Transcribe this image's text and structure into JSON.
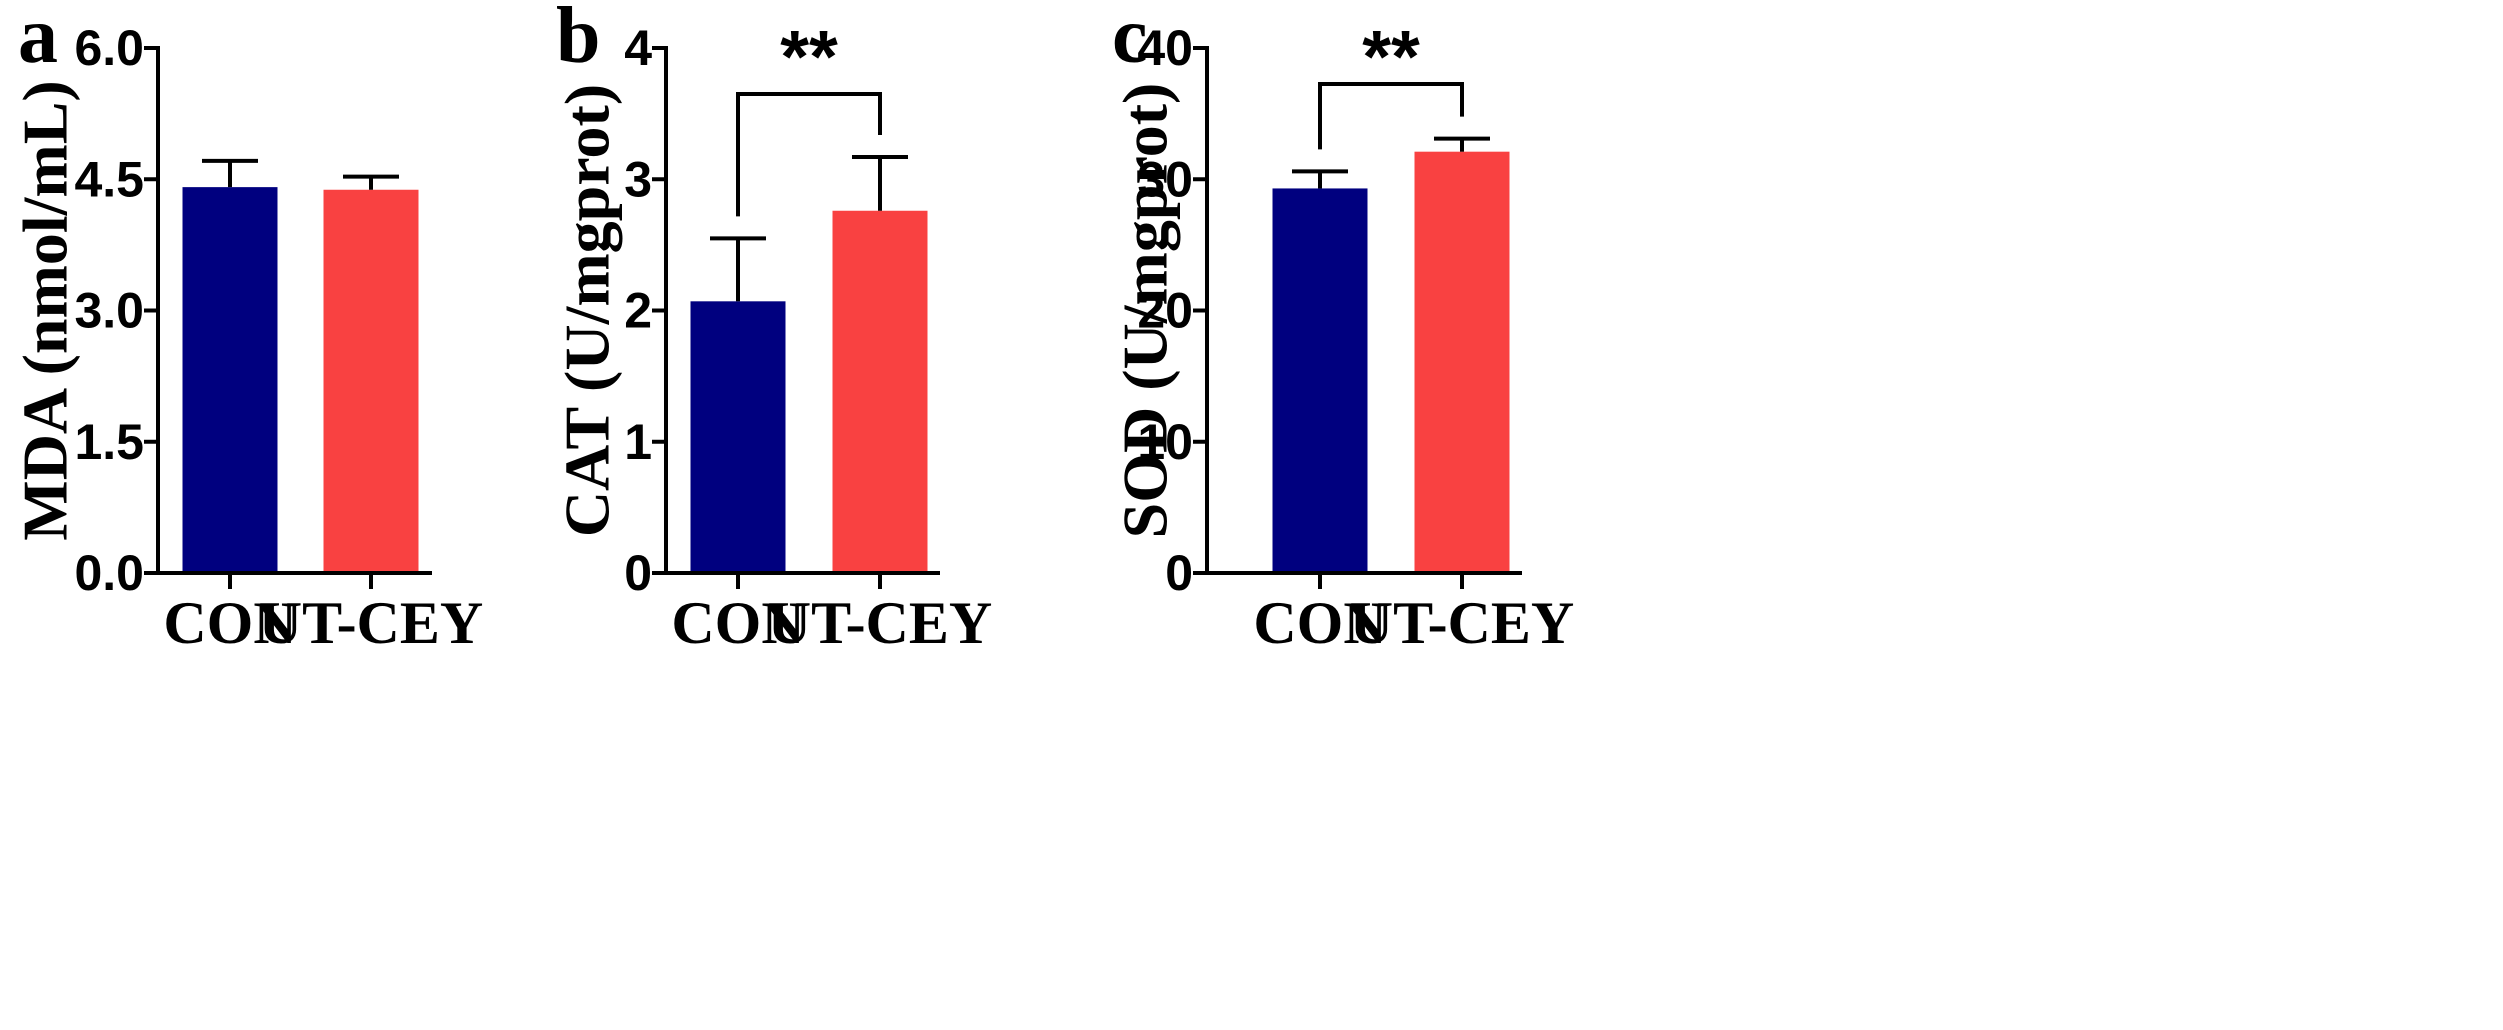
{
  "chart_data": [
    {
      "type": "bar",
      "panel": "a",
      "categories": [
        "CON",
        "UT-CEY"
      ],
      "values": [
        4.41,
        4.38
      ],
      "errors": [
        0.3,
        0.15
      ],
      "colors": [
        "#00007f",
        "#f94141"
      ],
      "ylabel": "MDA (nmol/mL)",
      "ylim": [
        0,
        6
      ],
      "yticks": [
        "0.0",
        "1.5",
        "3.0",
        "4.5",
        "6.0"
      ],
      "significance": null
    },
    {
      "type": "bar",
      "panel": "b",
      "categories": [
        "CON",
        "UT-CEY"
      ],
      "values": [
        2.07,
        2.76
      ],
      "errors": [
        0.48,
        0.41
      ],
      "colors": [
        "#00007f",
        "#f94141"
      ],
      "ylabel": "CAT (U/mgprot)",
      "ylim": [
        0,
        4
      ],
      "yticks": [
        "0",
        "1",
        "2",
        "3",
        "4"
      ],
      "significance": "**"
    },
    {
      "type": "bar",
      "panel": "c",
      "categories": [
        "CON",
        "UT-CEY"
      ],
      "values": [
        29.3,
        32.1
      ],
      "errors": [
        1.3,
        1.0
      ],
      "colors": [
        "#00007f",
        "#f94141"
      ],
      "ylabel": "SOD (U/mgprot)",
      "ylim": [
        0,
        40
      ],
      "yticks": [
        "0",
        "10",
        "20",
        "30",
        "40"
      ],
      "significance": "**"
    }
  ]
}
